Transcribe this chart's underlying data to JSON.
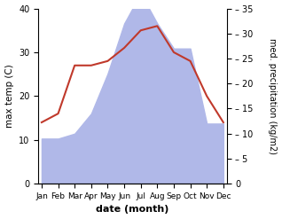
{
  "months": [
    "Jan",
    "Feb",
    "Mar",
    "Apr",
    "May",
    "Jun",
    "Jul",
    "Aug",
    "Sep",
    "Oct",
    "Nov",
    "Dec"
  ],
  "month_indices": [
    0,
    1,
    2,
    3,
    4,
    5,
    6,
    7,
    8,
    9,
    10,
    11
  ],
  "precipitation": [
    9,
    9,
    10,
    14,
    22,
    32,
    38,
    32,
    27,
    27,
    12,
    12
  ],
  "temperature": [
    14,
    16,
    27,
    27,
    28,
    31,
    35,
    36,
    30,
    28,
    20,
    14
  ],
  "precip_color": "#b0b8e8",
  "temp_color": "#c0392b",
  "temp_ylim": [
    0,
    40
  ],
  "precip_ylim": [
    0,
    35
  ],
  "temp_yticks": [
    0,
    10,
    20,
    30,
    40
  ],
  "precip_yticks": [
    0,
    5,
    10,
    15,
    20,
    25,
    30,
    35
  ],
  "xlabel": "date (month)",
  "ylabel_left": "max temp (C)",
  "ylabel_right": "med. precipitation (kg/m2)",
  "figsize": [
    3.18,
    2.47
  ],
  "dpi": 100
}
